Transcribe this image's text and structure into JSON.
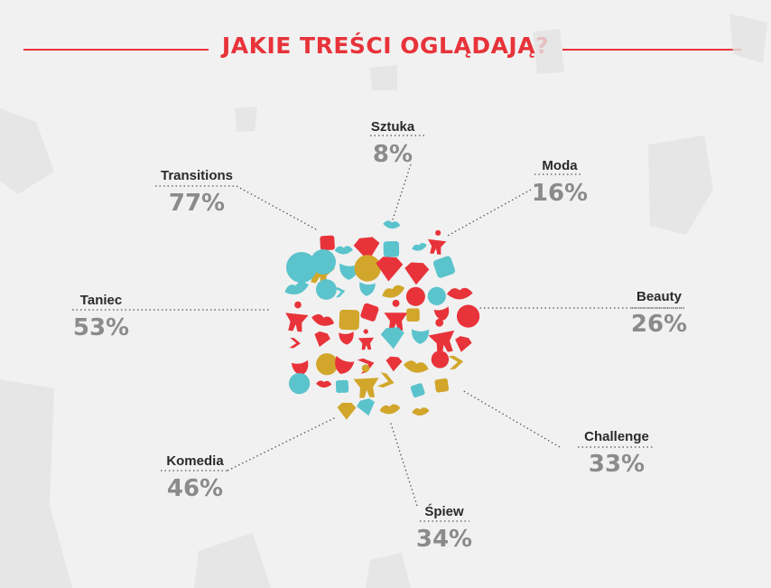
{
  "title": "JAKIE TREŚCI OGLĄDAJĄ?",
  "colors": {
    "accent": "#e8333a",
    "teal": "#5bc3cc",
    "gold": "#d1a62a",
    "label": "#2a2a2a",
    "value": "#8b8b8b",
    "background": "#f1f1f1",
    "dotted": "#555555"
  },
  "icons": [
    "drama-mask-icon",
    "diamond-icon",
    "dancer-icon",
    "palette-icon",
    "lips-icon",
    "arrow-chevrons-icon",
    "trumpet-icon",
    "singer-icon",
    "flexing-figure-icon",
    "bubble-circles-icon"
  ],
  "chart_data": {
    "type": "radial-labels",
    "title": "JAKIE TREŚCI OGLĄDAJĄ?",
    "categories": [
      "Sztuka",
      "Moda",
      "Beauty",
      "Challenge",
      "Śpiew",
      "Komedia",
      "Taniec",
      "Transitions"
    ],
    "values": [
      8,
      16,
      26,
      33,
      34,
      46,
      53,
      77
    ],
    "value_labels": [
      "8%",
      "16%",
      "26%",
      "33%",
      "34%",
      "46%",
      "53%",
      "77%"
    ],
    "unit": "%"
  }
}
